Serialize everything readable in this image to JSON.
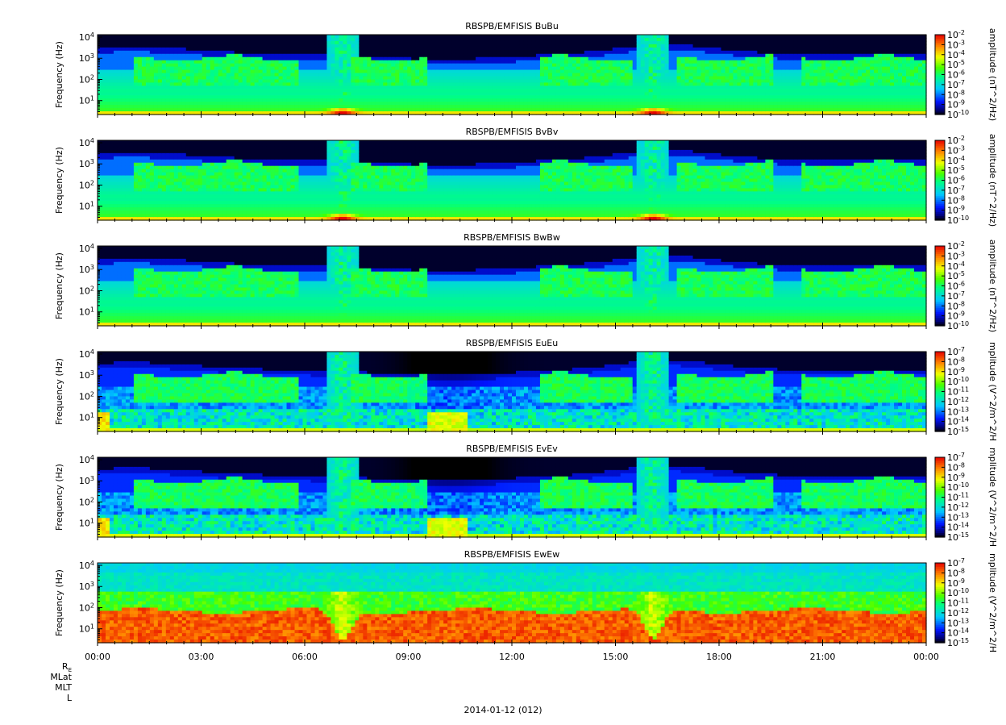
{
  "chart_data": {
    "type": "heatmap",
    "panels": [
      {
        "title": "RBSPB/EMFISIS  BuBu",
        "ylabel": "Frequency (Hz)",
        "yscale": "log",
        "yticks": [
          "10^1",
          "10^2",
          "10^3",
          "10^4"
        ],
        "colorbar_label": "amplitude (nT^2/Hz)",
        "colorbar_range_exp": [
          -10,
          -2
        ],
        "colorbar_ticks": [
          "10^-2",
          "10^-3",
          "10^-4",
          "10^-5",
          "10^-6",
          "10^-7",
          "10^-8",
          "10^-9",
          "10^-10"
        ],
        "style": "B"
      },
      {
        "title": "RBSPB/EMFISIS  BvBv",
        "ylabel": "Frequency (Hz)",
        "yscale": "log",
        "yticks": [
          "10^1",
          "10^2",
          "10^3",
          "10^4"
        ],
        "colorbar_label": "amplitude (nT^2/Hz)",
        "colorbar_range_exp": [
          -10,
          -2
        ],
        "colorbar_ticks": [
          "10^-2",
          "10^-3",
          "10^-4",
          "10^-5",
          "10^-6",
          "10^-7",
          "10^-8",
          "10^-9",
          "10^-10"
        ],
        "style": "B"
      },
      {
        "title": "RBSPB/EMFISIS  BwBw",
        "ylabel": "Frequency (Hz)",
        "yscale": "log",
        "yticks": [
          "10^1",
          "10^2",
          "10^3",
          "10^4"
        ],
        "colorbar_label": "amplitude (nT^2/Hz)",
        "colorbar_range_exp": [
          -10,
          -2
        ],
        "colorbar_ticks": [
          "10^-2",
          "10^-3",
          "10^-4",
          "10^-5",
          "10^-6",
          "10^-7",
          "10^-8",
          "10^-9",
          "10^-10"
        ],
        "style": "Bw"
      },
      {
        "title": "RBSPB/EMFISIS  EuEu",
        "ylabel": "Frequency (Hz)",
        "yscale": "log",
        "yticks": [
          "10^1",
          "10^2",
          "10^3",
          "10^4"
        ],
        "colorbar_label": "mplitude (V^2/m^2/H",
        "colorbar_range_exp": [
          -15,
          -7
        ],
        "colorbar_ticks": [
          "10^-7",
          "10^-8",
          "10^-9",
          "10^-10",
          "10^-11",
          "10^-12",
          "10^-13",
          "10^-14",
          "10^-15"
        ],
        "style": "E"
      },
      {
        "title": "RBSPB/EMFISIS  EvEv",
        "ylabel": "Frequency (Hz)",
        "yscale": "log",
        "yticks": [
          "10^1",
          "10^2",
          "10^3",
          "10^4"
        ],
        "colorbar_label": "mplitude (V^2/m^2/H",
        "colorbar_range_exp": [
          -15,
          -7
        ],
        "colorbar_ticks": [
          "10^-7",
          "10^-8",
          "10^-9",
          "10^-10",
          "10^-11",
          "10^-12",
          "10^-13",
          "10^-14",
          "10^-15"
        ],
        "style": "E"
      },
      {
        "title": "RBSPB/EMFISIS  EwEw",
        "ylabel": "Frequency (Hz)",
        "yscale": "log",
        "yticks": [
          "10^1",
          "10^2",
          "10^3",
          "10^4"
        ],
        "colorbar_label": "mplitude (V^2/m^2/H",
        "colorbar_range_exp": [
          -15,
          -7
        ],
        "colorbar_ticks": [
          "10^-7",
          "10^-8",
          "10^-9",
          "10^-10",
          "10^-11",
          "10^-12",
          "10^-13",
          "10^-14",
          "10^-15"
        ],
        "style": "Ew"
      }
    ],
    "xtick_labels": [
      "00:00",
      "03:00",
      "06:00",
      "09:00",
      "12:00",
      "15:00",
      "18:00",
      "21:00",
      "00:00"
    ],
    "x_range_hours": [
      0,
      24
    ],
    "ephemeris_labels": [
      "R",
      "MLat",
      "MLT",
      "L"
    ],
    "ephemeris_subscript": "E",
    "date_label": "2014-01-12 (012)"
  }
}
